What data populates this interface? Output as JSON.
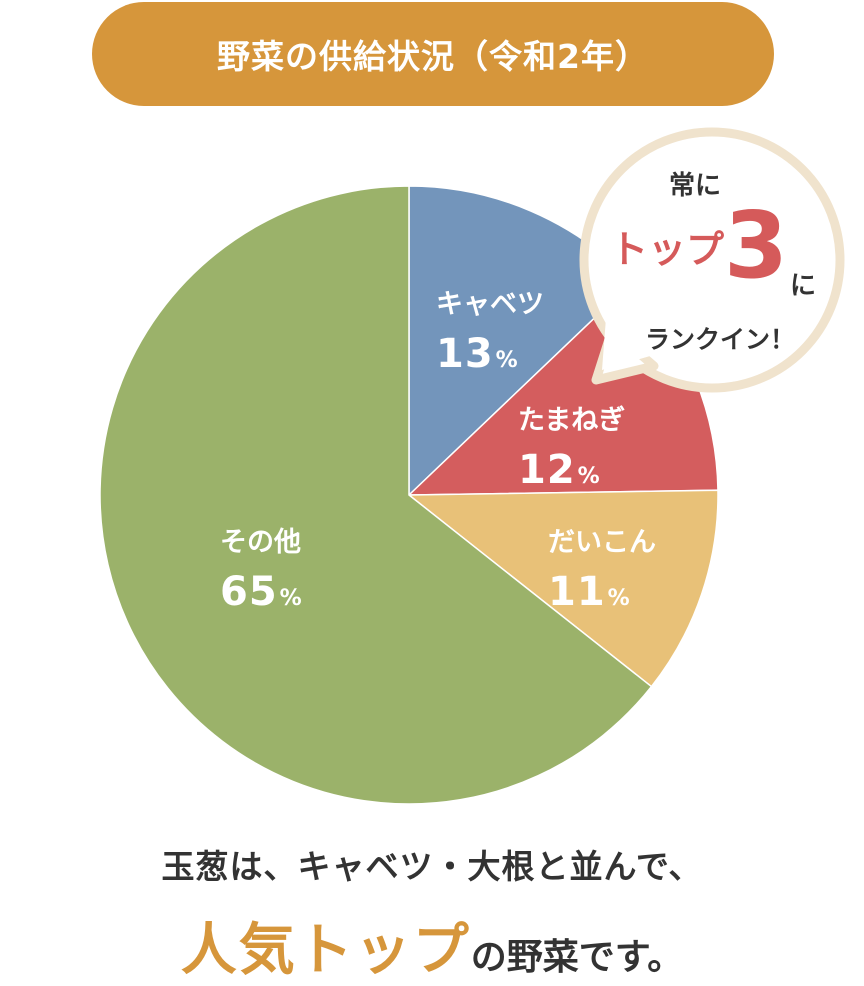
{
  "header": {
    "title": "野菜の供給状況（令和2年）"
  },
  "colors": {
    "header_bg": "#d6963b",
    "cabbage": "#7395bb",
    "onion": "#d45d5e",
    "radish": "#e8c178",
    "other": "#9bb26a",
    "callout_border": "#f0e3cd",
    "accent": "#d55a5a",
    "highlight": "#d6963b"
  },
  "chart_data": {
    "type": "pie",
    "start_angle": "top, clockwise",
    "slices": [
      {
        "name": "キャベツ",
        "value": 13,
        "unit": "%",
        "color": "#7395bb"
      },
      {
        "name": "たまねぎ",
        "value": 12,
        "unit": "%",
        "color": "#d45d5e"
      },
      {
        "name": "だいこん",
        "value": 11,
        "unit": "%",
        "color": "#e8c178"
      },
      {
        "name": "その他",
        "value": 65,
        "unit": "%",
        "color": "#9bb26a"
      }
    ]
  },
  "callout": {
    "line1": "常に",
    "top": "トップ",
    "number": "3",
    "ni": "に",
    "line3": "ランクイン！"
  },
  "footer": {
    "line1": "玉葱は、キャベツ・大根と並んで、",
    "highlight": "人気トップ",
    "rest": "の野菜です。"
  }
}
